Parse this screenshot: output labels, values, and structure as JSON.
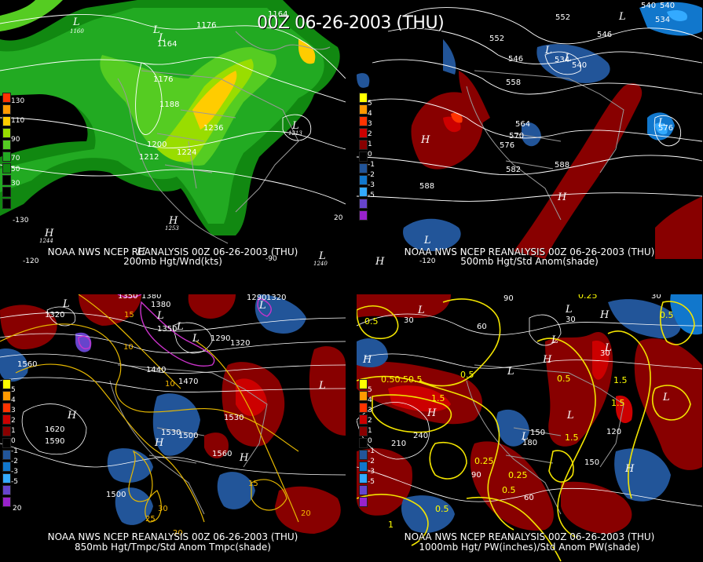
{
  "title": "00Z 06-26-2003 (THU)",
  "panels": [
    {
      "id": "200mb",
      "source": "NOAA NWS NCEP REANALYSIS 00Z 06-26-2003 (THU)",
      "subtitle": "200mb Hgt/Wnd(kts)",
      "legend": {
        "labels": [
          "130",
          "110",
          "90",
          "70",
          "50",
          "30"
        ],
        "colors": [
          "#ff3300",
          "#ff9900",
          "#ffcc00",
          "#99dd00",
          "#55cc22",
          "#22aa22",
          "#118811"
        ]
      },
      "contour_labels": [
        "1164",
        "1176",
        "1164",
        "1176",
        "1188",
        "1236",
        "1200",
        "1212",
        "1224",
        "1213",
        "1253",
        "1244",
        "1240",
        "1160"
      ],
      "pressure_centers": [
        "L",
        "L",
        "H",
        "L",
        "H",
        "H",
        "L",
        "L"
      ],
      "lon_labels": [
        "-130",
        "-120",
        "-90",
        "20"
      ]
    },
    {
      "id": "500mb",
      "source": "NOAA NWS NCEP REANALYSIS 00Z 06-26-2003 (THU)",
      "subtitle": "500mb Hgt/Std Anom(shade)",
      "legend": {
        "labels": [
          "5",
          "4",
          "3",
          "2",
          "1",
          "0",
          "-1",
          "-2",
          "-3",
          "-4",
          "-5"
        ],
        "colors": [
          "#ffff00",
          "#ff9900",
          "#ff3300",
          "#cc0000",
          "#880000",
          "#000000",
          "#225599",
          "#1177cc",
          "#33aaff",
          "#6644cc",
          "#9922cc"
        ]
      },
      "contour_labels": [
        "540",
        "552",
        "546",
        "552",
        "546",
        "534",
        "540",
        "534",
        "558",
        "564",
        "570",
        "576",
        "582",
        "588",
        "588",
        "576",
        "540"
      ],
      "pressure_centers": [
        "L",
        "L",
        "L",
        "L",
        "H",
        "H",
        "L",
        "H"
      ],
      "lon_labels": [
        "-120",
        "H"
      ]
    },
    {
      "id": "850mb",
      "source": "NOAA NWS NCEP REANALYSIS 00Z 06-26-2003 (THU)",
      "subtitle": "850mb Hgt/Tmpc/Std Anom Tmpc(shade)",
      "legend": {
        "labels": [
          "5",
          "4",
          "3",
          "2",
          "1",
          "0",
          "-1",
          "-2",
          "-3",
          "-4",
          "-5"
        ],
        "colors": [
          "#ffff00",
          "#ff9900",
          "#ff3300",
          "#cc0000",
          "#880000",
          "#000000",
          "#225599",
          "#1177cc",
          "#33aaff",
          "#6644cc",
          "#9922cc"
        ]
      },
      "contour_labels": [
        "1350",
        "1380",
        "1320",
        "1320",
        "1380",
        "1350",
        "1290",
        "1320",
        "1290",
        "1560",
        "1440",
        "1470",
        "1620",
        "1590",
        "1530",
        "1500",
        "1530",
        "1560",
        "1500",
        "10",
        "10",
        "15",
        "25",
        "30",
        "20",
        "15",
        "20"
      ],
      "pressure_centers": [
        "L",
        "L",
        "L",
        "L",
        "L",
        "H",
        "H",
        "L",
        "H"
      ],
      "lon_labels": [
        "20"
      ]
    },
    {
      "id": "1000mb",
      "source": "NOAA NWS NCEP REANALYSIS 00Z 06-26-2003 (THU)",
      "subtitle": "1000mb Hgt/ PW(inches)/Std Anom PW(shade)",
      "legend": {
        "labels": [
          "5",
          "4",
          "3",
          "2",
          "1",
          "0",
          "-1",
          "-2",
          "-3",
          "-4",
          "-5"
        ],
        "colors": [
          "#ffff00",
          "#ff9900",
          "#ff3300",
          "#cc0000",
          "#880000",
          "#000000",
          "#225599",
          "#1177cc",
          "#33aaff",
          "#6644cc",
          "#9922cc"
        ]
      },
      "contour_labels": [
        "90",
        "30",
        "60",
        "30",
        "0.25",
        "30",
        "0.5",
        "0.5",
        "30",
        "0.5",
        "0.50.50.5",
        "0.5",
        "1.5",
        "1.5",
        "1.5",
        "240",
        "210",
        "150",
        "180",
        "120",
        "150",
        "1.5",
        "0.25",
        "0.25",
        "0.5",
        "90",
        "60",
        "0.5",
        "1"
      ],
      "pressure_centers": [
        "L",
        "L",
        "L",
        "L",
        "H",
        "H",
        "L",
        "L",
        "L",
        "H",
        "L",
        "H",
        "H"
      ],
      "lon_labels": []
    }
  ]
}
